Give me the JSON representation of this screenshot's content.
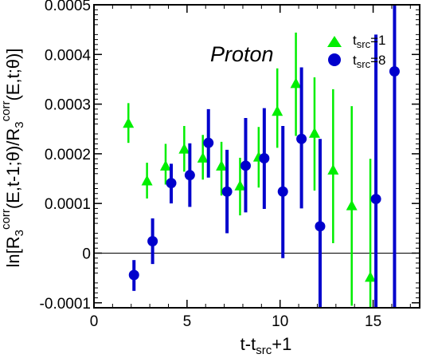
{
  "chart_data": {
    "type": "scatter",
    "title": "",
    "annotation": "Proton",
    "xlabel": {
      "main": "t-t",
      "sub": "src",
      "tail": "+1"
    },
    "ylabel": {
      "p1": "ln[R",
      "sub1": "3",
      "sup1": "corr",
      "p2": "(E,t-1;θ)/R",
      "sub2": "3",
      "sup2": "corr",
      "p3": "(E,t;θ)]"
    },
    "xlim": [
      0,
      17.5
    ],
    "ylim": [
      -0.00011,
      0.0005
    ],
    "xticks": [
      0,
      5,
      10,
      15
    ],
    "xtick_labels": [
      "0",
      "5",
      "10",
      "15"
    ],
    "yticks": [
      -0.0001,
      0,
      0.0001,
      0.0002,
      0.0003,
      0.0004,
      0.0005
    ],
    "ytick_labels": [
      "-0.0001",
      "0",
      "0.0001",
      "0.0002",
      "0.0003",
      "0.0004",
      "0.0005"
    ],
    "grid": false,
    "zero_line": true,
    "legend_position": "top-right",
    "series": [
      {
        "name": "tsrc=1",
        "legend_main": "t",
        "legend_sub": "src",
        "legend_tail": "=1",
        "color": "#00ee00",
        "marker": "triangle",
        "points": [
          {
            "x": 1.85,
            "y": 0.000262,
            "ylo": 0.000222,
            "yhi": 0.000302
          },
          {
            "x": 2.85,
            "y": 0.000146,
            "ylo": 0.00011,
            "yhi": 0.000182
          },
          {
            "x": 3.85,
            "y": 0.000176,
            "ylo": 0.000138,
            "yhi": 0.00022
          },
          {
            "x": 4.85,
            "y": 0.00021,
            "ylo": 0.000164,
            "yhi": 0.000256
          },
          {
            "x": 5.85,
            "y": 0.000192,
            "ylo": 0.000148,
            "yhi": 0.000238
          },
          {
            "x": 6.85,
            "y": 0.000176,
            "ylo": 0.000116,
            "yhi": 0.000224
          },
          {
            "x": 7.85,
            "y": 0.000136,
            "ylo": 7.6e-05,
            "yhi": 0.000192
          },
          {
            "x": 8.85,
            "y": 0.000194,
            "ylo": 0.000132,
            "yhi": 0.000254
          },
          {
            "x": 9.85,
            "y": 0.000286,
            "ylo": 0.000212,
            "yhi": 0.000372
          },
          {
            "x": 10.85,
            "y": 0.000342,
            "ylo": 0.000236,
            "yhi": 0.000444
          },
          {
            "x": 11.85,
            "y": 0.000242,
            "ylo": 0.000126,
            "yhi": 0.000354
          },
          {
            "x": 12.85,
            "y": 0.000168,
            "ylo": 2e-05,
            "yhi": 0.00033
          },
          {
            "x": 13.85,
            "y": 9.6e-05,
            "ylo": -0.000106,
            "yhi": 0.000296
          },
          {
            "x": 14.85,
            "y": -4.8e-05,
            "ylo": -0.00011,
            "yhi": 0.00019
          }
        ]
      },
      {
        "name": "tsrc=8",
        "legend_main": "t",
        "legend_sub": "src",
        "legend_tail": "=8",
        "color": "#0000cc",
        "marker": "circle",
        "points": [
          {
            "x": 2.15,
            "y": -4.4e-05,
            "ylo": -7.6e-05,
            "yhi": -1.4e-05
          },
          {
            "x": 3.15,
            "y": 2.4e-05,
            "ylo": -2.2e-05,
            "yhi": 7e-05
          },
          {
            "x": 4.15,
            "y": 0.000141,
            "ylo": 0.0001,
            "yhi": 0.00018
          },
          {
            "x": 5.15,
            "y": 0.000157,
            "ylo": 9.3e-05,
            "yhi": 0.000221
          },
          {
            "x": 6.15,
            "y": 0.000222,
            "ylo": 0.000152,
            "yhi": 0.00029
          },
          {
            "x": 7.15,
            "y": 0.000124,
            "ylo": 4e-05,
            "yhi": 0.000208
          },
          {
            "x": 8.15,
            "y": 0.000176,
            "ylo": 8.2e-05,
            "yhi": 0.000272
          },
          {
            "x": 9.15,
            "y": 0.000191,
            "ylo": 8.9e-05,
            "yhi": 0.000292
          },
          {
            "x": 10.15,
            "y": 0.000124,
            "ylo": -1e-05,
            "yhi": 0.000256
          },
          {
            "x": 11.15,
            "y": 0.00023,
            "ylo": 9e-05,
            "yhi": 0.000374
          },
          {
            "x": 12.15,
            "y": 5.4e-05,
            "ylo": -0.00011,
            "yhi": 0.00023
          },
          {
            "x": 15.15,
            "y": 0.000109,
            "ylo": -0.00011,
            "yhi": 0.00044
          },
          {
            "x": 16.15,
            "y": 0.000366,
            "ylo": -0.00011,
            "yhi": 0.0005
          }
        ]
      }
    ]
  }
}
